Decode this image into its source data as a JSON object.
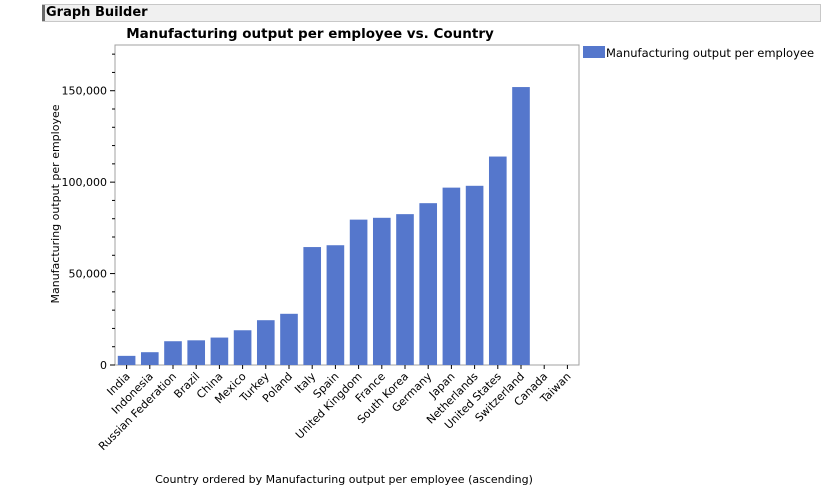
{
  "header": {
    "title": "Graph Builder"
  },
  "chart_data": {
    "type": "bar",
    "title": "Manufacturing output per employee vs. Country",
    "xlabel": "Country ordered by Manufacturing output per employee (ascending)",
    "ylabel": "Manufacturing output per employee",
    "legend": {
      "position": "right",
      "entries": [
        "Manufacturing output per employee"
      ]
    },
    "ylim": [
      0,
      175000
    ],
    "yticks": [
      0,
      50000,
      100000,
      150000
    ],
    "ytick_labels": [
      "0",
      "50,000",
      "100,000",
      "150,000"
    ],
    "grid": false,
    "bar_color": "#5577cc",
    "categories": [
      "India",
      "Indonesia",
      "Russian Federation",
      "Brazil",
      "China",
      "Mexico",
      "Turkey",
      "Poland",
      "Italy",
      "Spain",
      "United Kingdom",
      "France",
      "South Korea",
      "Germany",
      "Japan",
      "Netherlands",
      "United States",
      "Switzerland",
      "Canada",
      "Taiwan"
    ],
    "series": [
      {
        "name": "Manufacturing output per employee",
        "values": [
          5000,
          7000,
          13000,
          13500,
          15000,
          19000,
          24500,
          28000,
          64500,
          65500,
          79500,
          80500,
          82500,
          88500,
          97000,
          98000,
          114000,
          152000,
          null,
          null
        ]
      }
    ]
  }
}
